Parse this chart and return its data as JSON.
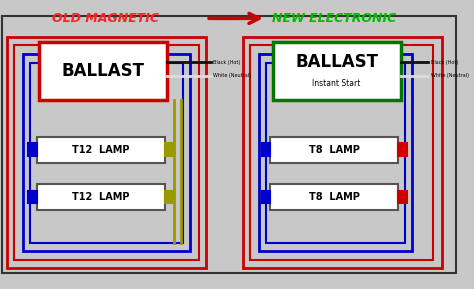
{
  "bg_color": "#c8c8c8",
  "diagram_bg": "#c8c8c8",
  "title_old": "OLD MAGNETIC",
  "title_new": "NEW ELECTRONIC",
  "title_old_color": "#ff2222",
  "title_new_color": "#00bb00",
  "arrow_color": "#cc0000",
  "ballast_old_label": "BALLAST",
  "ballast_new_label": "BALLAST",
  "ballast_new_sublabel": "Instant Start",
  "ballast_old_border": "#cc0000",
  "ballast_new_border": "#007700",
  "lamp_old1": "T12  LAMP",
  "lamp_old2": "T12  LAMP",
  "lamp_new1": "T8  LAMP",
  "lamp_new2": "T8  LAMP",
  "wire_red": "#cc0000",
  "wire_blue": "#0000cc",
  "wire_yellow": "#999900",
  "wire_black": "#111111",
  "wire_white": "#dddddd",
  "label_black": "Black (Hot)",
  "label_white": "White (Neutral)",
  "outer_border": "#333333"
}
